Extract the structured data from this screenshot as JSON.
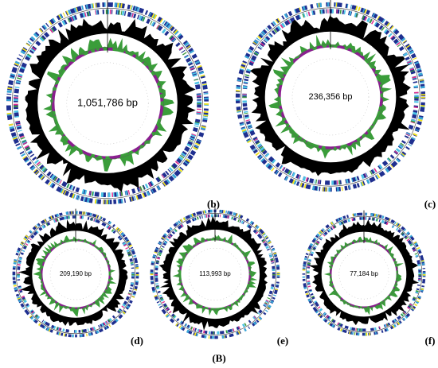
{
  "panels": [
    {
      "label": "(b)",
      "size": "1,051,786 bp"
    },
    {
      "label": "(c)",
      "size": "236,356 bp"
    },
    {
      "label": "(d)",
      "size": "209,190 bp"
    },
    {
      "label": "(e)",
      "size": "113,993 bp"
    },
    {
      "label": "(f)",
      "size": "77,184 bp"
    }
  ],
  "caption": "(B)"
}
